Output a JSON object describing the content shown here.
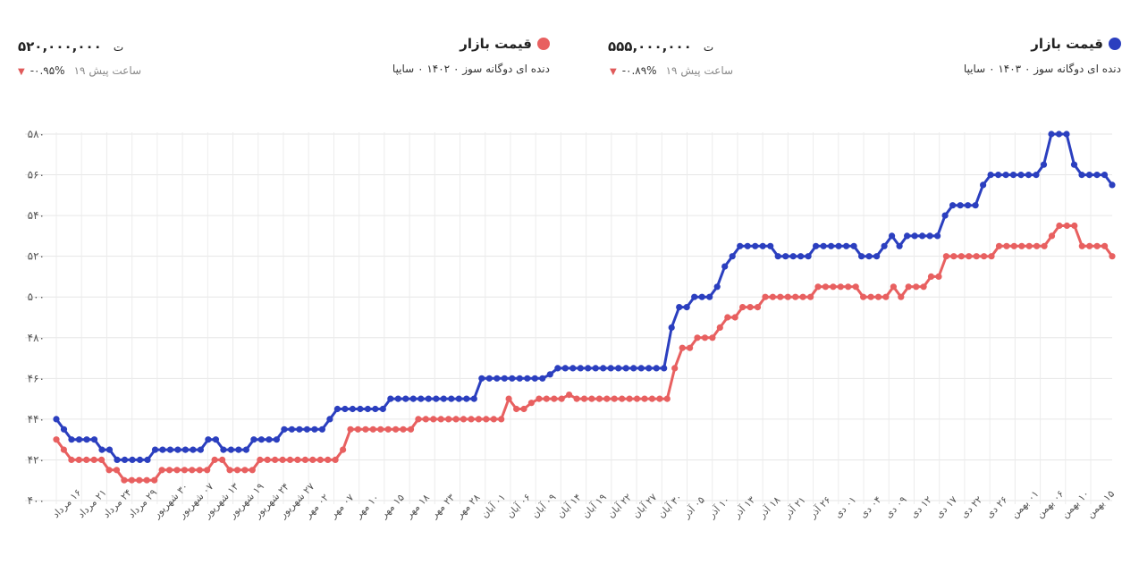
{
  "legend": [
    {
      "name": "قیمت بازار",
      "subtitle": "دنده ای دوگانه سوز ۰ ۱۴۰۳ ۰ سایپا",
      "price": "۵۵۵,۰۰۰,۰۰۰",
      "currency": "ت",
      "change": "-۰.۸۹%",
      "ago": "۱۹ ساعت پیش",
      "color": "#2b3fbf"
    },
    {
      "name": "قیمت بازار",
      "subtitle": "دنده ای دوگانه سوز ۰ ۱۴۰۲ ۰ سایپا",
      "price": "۵۲۰,۰۰۰,۰۰۰",
      "currency": "ت",
      "change": "-۰.۹۵%",
      "ago": "۱۹ ساعت پیش",
      "color": "#e86060"
    }
  ],
  "chart_data": {
    "type": "line",
    "ylim": [
      400,
      580
    ],
    "yticks": [
      400,
      420,
      440,
      460,
      480,
      500,
      520,
      540,
      560,
      580
    ],
    "ytick_labels": [
      "۴۰۰",
      "۴۲۰",
      "۴۴۰",
      "۴۶۰",
      "۴۸۰",
      "۵۰۰",
      "۵۲۰",
      "۵۴۰",
      "۵۶۰",
      "۵۸۰"
    ],
    "xtick_labels": [
      "۱۶ مرداد",
      "۲۱ مرداد",
      "۲۴ مرداد",
      "۲۹ مرداد",
      "۳۰ شهریور",
      "۰۷ شهریور",
      "۱۳ شهریور",
      "۱۹ شهریور",
      "۲۴ شهریور",
      "۲۷ شهریور",
      "۰۲ مهر",
      "۰۷ مهر",
      "۱۰ مهر",
      "۱۵ مهر",
      "۱۸ مهر",
      "۲۳ مهر",
      "۲۸ مهر",
      "۰۱ آبان",
      "۰۶ آبان",
      "۰۹ آبان",
      "۱۴ آبان",
      "۱۹ آبان",
      "۲۲ آبان",
      "۲۷ آبان",
      "۳۰ آبان",
      "۰۵ آذر",
      "۱۰ آذر",
      "۱۳ آذر",
      "۱۸ آذر",
      "۲۱ آذر",
      "۲۶ آذر",
      "۰۱ دی",
      "۰۴ دی",
      "۰۹ دی",
      "۱۲ دی",
      "۱۷ دی",
      "۲۲ دی",
      "۲۶ دی",
      "۰۱ بهمن",
      "۰۶ بهمن",
      "۱۰ بهمن",
      "۱۵ بهمن"
    ],
    "series": [
      {
        "name": "قیمت بازار",
        "color": "#2b3fbf",
        "values": [
          440,
          435,
          430,
          430,
          430,
          430,
          425,
          425,
          420,
          420,
          420,
          420,
          420,
          425,
          425,
          425,
          425,
          425,
          425,
          425,
          430,
          430,
          425,
          425,
          425,
          425,
          430,
          430,
          430,
          430,
          435,
          435,
          435,
          435,
          435,
          435,
          440,
          445,
          445,
          445,
          445,
          445,
          445,
          445,
          450,
          450,
          450,
          450,
          450,
          450,
          450,
          450,
          450,
          450,
          450,
          450,
          460,
          460,
          460,
          460,
          460,
          460,
          460,
          460,
          460,
          462,
          465,
          465,
          465,
          465,
          465,
          465,
          465,
          465,
          465,
          465,
          465,
          465,
          465,
          465,
          465,
          485,
          495,
          495,
          500,
          500,
          500,
          505,
          515,
          520,
          525,
          525,
          525,
          525,
          525,
          520,
          520,
          520,
          520,
          520,
          525,
          525,
          525,
          525,
          525,
          525,
          520,
          520,
          520,
          525,
          530,
          525,
          530,
          530,
          530,
          530,
          530,
          540,
          545,
          545,
          545,
          545,
          555,
          560,
          560,
          560,
          560,
          560,
          560,
          560,
          565,
          580,
          580,
          580,
          565,
          560,
          560,
          560,
          560,
          555
        ]
      },
      {
        "name": "قیمت بازار",
        "color": "#e86060",
        "values": [
          430,
          425,
          420,
          420,
          420,
          420,
          420,
          415,
          415,
          410,
          410,
          410,
          410,
          410,
          415,
          415,
          415,
          415,
          415,
          415,
          415,
          420,
          420,
          415,
          415,
          415,
          415,
          420,
          420,
          420,
          420,
          420,
          420,
          420,
          420,
          420,
          420,
          420,
          425,
          435,
          435,
          435,
          435,
          435,
          435,
          435,
          435,
          435,
          440,
          440,
          440,
          440,
          440,
          440,
          440,
          440,
          440,
          440,
          440,
          440,
          450,
          445,
          445,
          448,
          450,
          450,
          450,
          450,
          452,
          450,
          450,
          450,
          450,
          450,
          450,
          450,
          450,
          450,
          450,
          450,
          450,
          450,
          465,
          475,
          475,
          480,
          480,
          480,
          485,
          490,
          490,
          495,
          495,
          495,
          500,
          500,
          500,
          500,
          500,
          500,
          500,
          505,
          505,
          505,
          505,
          505,
          505,
          500,
          500,
          500,
          500,
          505,
          500,
          505,
          505,
          505,
          510,
          510,
          520,
          520,
          520,
          520,
          520,
          520,
          520,
          525,
          525,
          525,
          525,
          525,
          525,
          525,
          530,
          535,
          535,
          535,
          525,
          525,
          525,
          525,
          520
        ]
      }
    ]
  }
}
